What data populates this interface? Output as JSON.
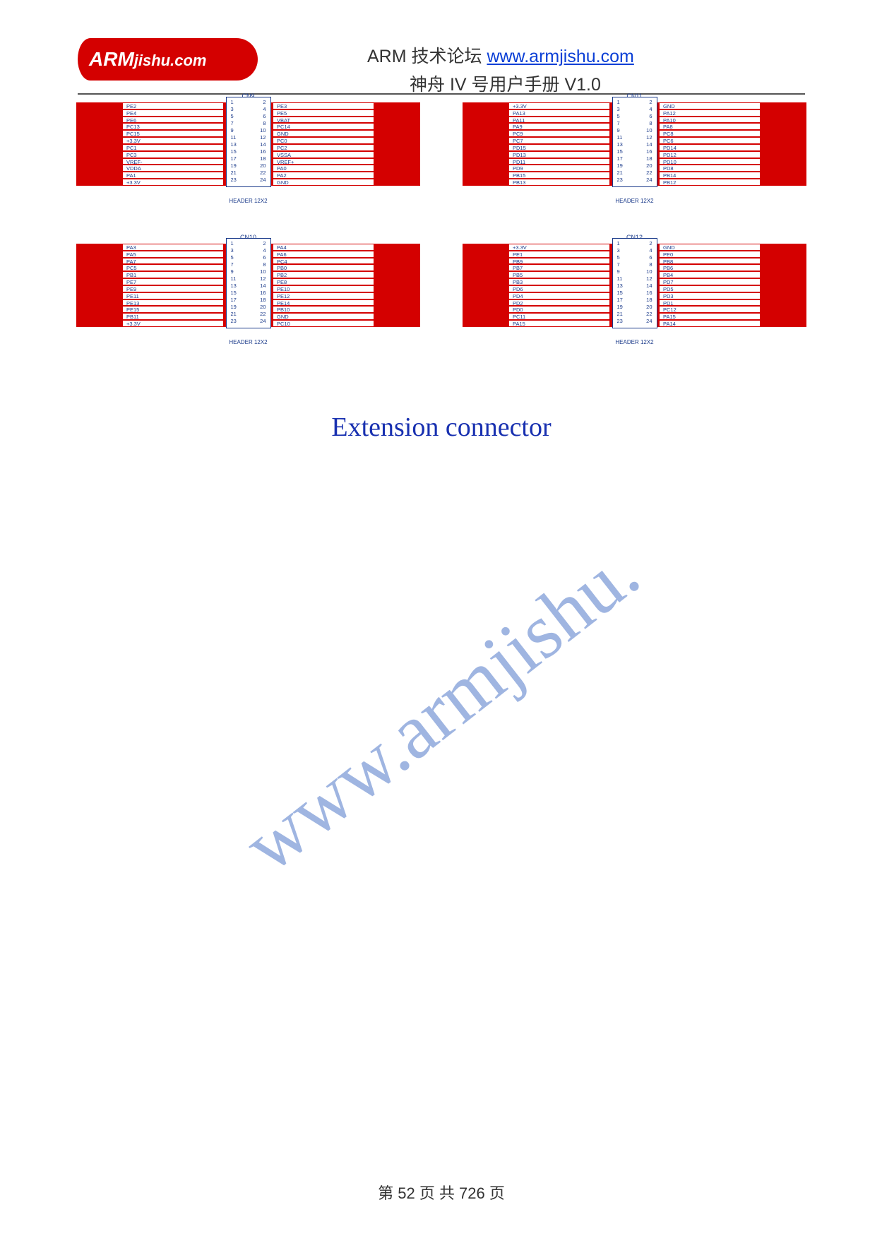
{
  "header": {
    "forum_label": "ARM 技术论坛 ",
    "forum_url": "www.armjishu.com",
    "manual_label": "神舟 IV 号用户手册 V1.0",
    "logo_text_bold": "ARM",
    "logo_text_tail": "jishu.com"
  },
  "section_title": "Extension connector",
  "watermark": "www.armjishu.",
  "footer": "第 52 页 共 726 页",
  "colors": {
    "trace_red": "#d40000",
    "trace_cyan": "#5ad0e6",
    "schematic_blue": "#1a3a8a",
    "title_blue": "#1830b0",
    "watermark_blue": "rgba(80,120,200,0.55)"
  },
  "connectors": [
    {
      "name": "CN9",
      "footer": "HEADER 12X2",
      "rows": [
        {
          "l": "PE2",
          "p1": 1,
          "p2": 2,
          "r": "PE3"
        },
        {
          "l": "PE4",
          "p1": 3,
          "p2": 4,
          "r": "PE5"
        },
        {
          "l": "PE6",
          "p1": 5,
          "p2": 6,
          "r": "VBAT"
        },
        {
          "l": "PC13",
          "p1": 7,
          "p2": 8,
          "r": "PC14"
        },
        {
          "l": "PC15",
          "p1": 9,
          "p2": 10,
          "r": "GND"
        },
        {
          "l": "+3.3V",
          "p1": 11,
          "p2": 12,
          "r": "PC0"
        },
        {
          "l": "PC1",
          "p1": 13,
          "p2": 14,
          "r": "PC2"
        },
        {
          "l": "PC3",
          "p1": 15,
          "p2": 16,
          "r": "VSSA"
        },
        {
          "l": "VREF-",
          "p1": 17,
          "p2": 18,
          "r": "VREF+"
        },
        {
          "l": "VDDA",
          "p1": 19,
          "p2": 20,
          "r": "PA0"
        },
        {
          "l": "PA1",
          "p1": 21,
          "p2": 22,
          "r": "PA2"
        },
        {
          "l": "+3.3V",
          "p1": 23,
          "p2": 24,
          "r": "GND"
        }
      ]
    },
    {
      "name": "CN11",
      "footer": "HEADER 12X2",
      "rows": [
        {
          "l": "+3.3V",
          "p1": 1,
          "p2": 2,
          "r": "GND"
        },
        {
          "l": "PA13",
          "p1": 3,
          "p2": 4,
          "r": "PA12"
        },
        {
          "l": "PA11",
          "p1": 5,
          "p2": 6,
          "r": "PA10"
        },
        {
          "l": "PA9",
          "p1": 7,
          "p2": 8,
          "r": "PA8"
        },
        {
          "l": "PC9",
          "p1": 9,
          "p2": 10,
          "r": "PC8"
        },
        {
          "l": "PC7",
          "p1": 11,
          "p2": 12,
          "r": "PC6"
        },
        {
          "l": "PD15",
          "p1": 13,
          "p2": 14,
          "r": "PD14"
        },
        {
          "l": "PD13",
          "p1": 15,
          "p2": 16,
          "r": "PD12"
        },
        {
          "l": "PD11",
          "p1": 17,
          "p2": 18,
          "r": "PD10"
        },
        {
          "l": "PD9",
          "p1": 19,
          "p2": 20,
          "r": "PD8"
        },
        {
          "l": "PB15",
          "p1": 21,
          "p2": 22,
          "r": "PB14"
        },
        {
          "l": "PB13",
          "p1": 23,
          "p2": 24,
          "r": "PB12"
        }
      ]
    },
    {
      "name": "CN10",
      "footer": "HEADER 12X2",
      "rows": [
        {
          "l": "PA3",
          "p1": 1,
          "p2": 2,
          "r": "PA4"
        },
        {
          "l": "PA5",
          "p1": 3,
          "p2": 4,
          "r": "PA6"
        },
        {
          "l": "PA7",
          "p1": 5,
          "p2": 6,
          "r": "PC4"
        },
        {
          "l": "PC5",
          "p1": 7,
          "p2": 8,
          "r": "PB0"
        },
        {
          "l": "PB1",
          "p1": 9,
          "p2": 10,
          "r": "PB2"
        },
        {
          "l": "PE7",
          "p1": 11,
          "p2": 12,
          "r": "PE8"
        },
        {
          "l": "PE9",
          "p1": 13,
          "p2": 14,
          "r": "PE10"
        },
        {
          "l": "PE11",
          "p1": 15,
          "p2": 16,
          "r": "PE12"
        },
        {
          "l": "PE13",
          "p1": 17,
          "p2": 18,
          "r": "PE14"
        },
        {
          "l": "PE15",
          "p1": 19,
          "p2": 20,
          "r": "PB10"
        },
        {
          "l": "PB11",
          "p1": 21,
          "p2": 22,
          "r": "GND"
        },
        {
          "l": "+3.3V",
          "p1": 23,
          "p2": 24,
          "r": "PC10"
        }
      ]
    },
    {
      "name": "CN12",
      "footer": "HEADER 12X2",
      "rows": [
        {
          "l": "+3.3V",
          "p1": 1,
          "p2": 2,
          "r": "GND"
        },
        {
          "l": "PE1",
          "p1": 3,
          "p2": 4,
          "r": "PE0"
        },
        {
          "l": "PB9",
          "p1": 5,
          "p2": 6,
          "r": "PB8"
        },
        {
          "l": "PB7",
          "p1": 7,
          "p2": 8,
          "r": "PB6"
        },
        {
          "l": "PB5",
          "p1": 9,
          "p2": 10,
          "r": "PB4"
        },
        {
          "l": "PB3",
          "p1": 11,
          "p2": 12,
          "r": "PD7"
        },
        {
          "l": "PD6",
          "p1": 13,
          "p2": 14,
          "r": "PD5"
        },
        {
          "l": "PD4",
          "p1": 15,
          "p2": 16,
          "r": "PD3"
        },
        {
          "l": "PD2",
          "p1": 17,
          "p2": 18,
          "r": "PD1"
        },
        {
          "l": "PD0",
          "p1": 19,
          "p2": 20,
          "r": "PC12"
        },
        {
          "l": "PC11",
          "p1": 21,
          "p2": 22,
          "r": "PA15"
        },
        {
          "l": "PA15",
          "p1": 23,
          "p2": 24,
          "r": "PA14"
        }
      ]
    }
  ]
}
